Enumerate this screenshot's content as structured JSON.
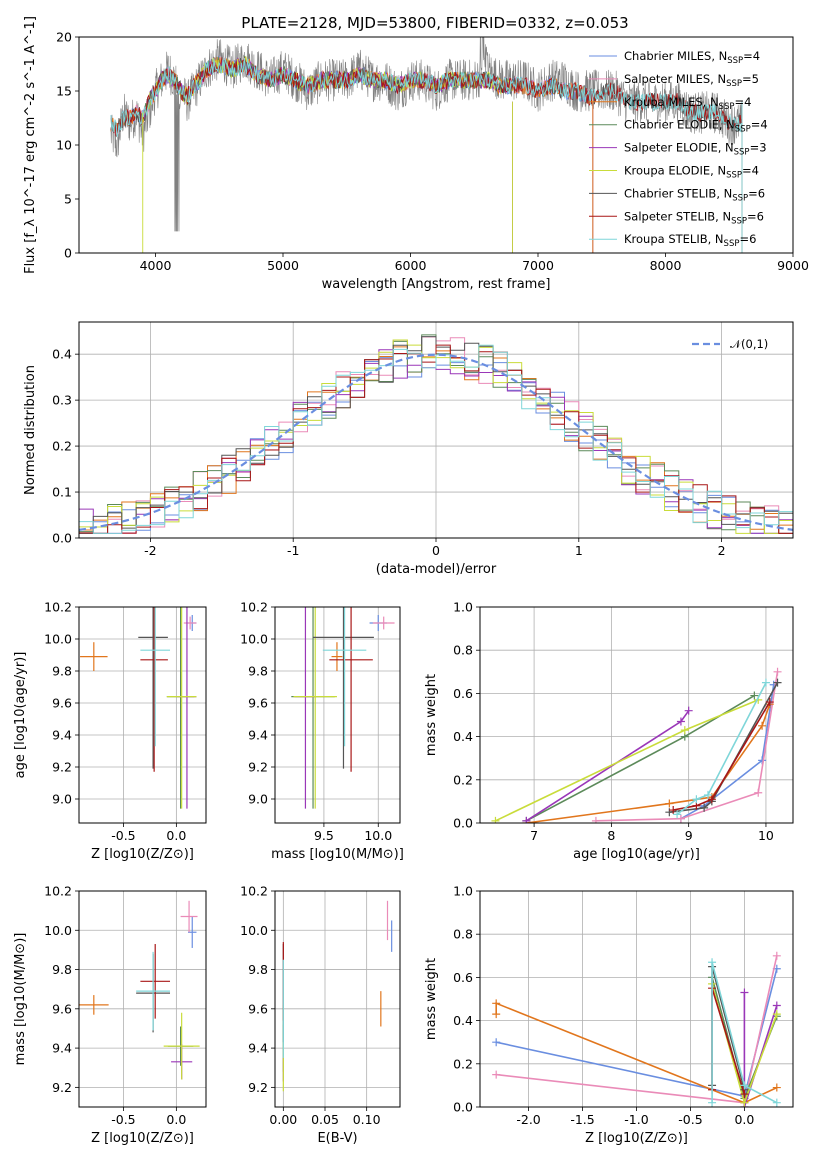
{
  "figure": {
    "title": "PLATE=2128, MJD=53800, FIBERID=0332, z=0.053"
  },
  "colors": {
    "Chabrier MILES": "#6a8ee0",
    "Salpeter MILES": "#ea8bb8",
    "Kroupa MILES": "#e1761d",
    "Chabrier ELODIE": "#5c8a5a",
    "Salpeter ELODIE": "#9a37b8",
    "Kroupa ELODIE": "#c9dc3a",
    "Chabrier STELIB": "#555555",
    "Salpeter STELIB": "#a81717",
    "Kroupa STELIB": "#7fd6d9"
  },
  "chart_data": [
    {
      "id": "spectrum",
      "type": "line",
      "title": "PLATE=2128, MJD=53800, FIBERID=0332, z=0.053",
      "xlabel": "wavelength [Angstrom, rest frame]",
      "ylabel": "Flux [f_λ 10^-17 erg cm^-2 s^-1 A^-1]",
      "xlim": [
        3400,
        9000
      ],
      "ylim": [
        0,
        20
      ],
      "xticks": [
        4000,
        5000,
        6000,
        7000,
        8000,
        9000
      ],
      "yticks": [
        0,
        5,
        10,
        15,
        20
      ],
      "legend": "top-right",
      "data_color": "#808080",
      "x": [
        3650,
        3700,
        3750,
        3800,
        3850,
        3900,
        3950,
        4000,
        4050,
        4100,
        4150,
        4200,
        4250,
        4300,
        4350,
        4400,
        4500,
        4600,
        4700,
        4800,
        4900,
        5000,
        5100,
        5200,
        5300,
        5400,
        5500,
        5600,
        5700,
        5800,
        5900,
        6000,
        6100,
        6200,
        6300,
        6400,
        6500,
        6600,
        6700,
        6800,
        6900,
        7000,
        7100,
        7200,
        7300,
        7400,
        7500,
        7600,
        7700,
        7800,
        7900,
        8000,
        8100,
        8200,
        8300,
        8400,
        8500,
        8600
      ],
      "data": [
        11,
        10,
        13,
        12,
        13,
        11,
        13,
        15,
        16,
        17,
        16,
        15,
        14,
        15,
        16,
        17,
        18,
        17,
        18,
        17,
        16,
        17,
        16,
        15,
        16,
        16,
        16,
        17,
        16,
        16,
        15,
        16,
        16,
        15,
        16,
        16,
        16,
        17,
        16,
        16,
        16,
        15,
        16,
        16,
        15,
        15,
        15,
        15,
        14,
        14,
        14,
        14,
        14,
        13,
        13,
        13,
        12,
        12
      ],
      "model": [
        12,
        11.5,
        12.5,
        12.5,
        13,
        12.5,
        14,
        15,
        16,
        16.5,
        16,
        15,
        14.5,
        15.5,
        16,
        17,
        17.5,
        17,
        17.5,
        16.5,
        16,
        16.5,
        16,
        15.5,
        16,
        16,
        16,
        16.5,
        16,
        16,
        15.5,
        16,
        16,
        15.5,
        16,
        16,
        16,
        16,
        15.5,
        15.5,
        15.5,
        15,
        15.5,
        15,
        15,
        14.5
      ],
      "series": [
        {
          "name": "Chabrier MILES",
          "nssp": "4",
          "range": [
            3650,
            7430
          ]
        },
        {
          "name": "Salpeter MILES",
          "nssp": "5",
          "range": [
            3650,
            7430
          ]
        },
        {
          "name": "Kroupa MILES",
          "nssp": "4",
          "range": [
            3650,
            7430
          ]
        },
        {
          "name": "Chabrier ELODIE",
          "nssp": "4",
          "range": [
            3900,
            6800
          ]
        },
        {
          "name": "Salpeter ELODIE",
          "nssp": "3",
          "range": [
            3900,
            6800
          ]
        },
        {
          "name": "Kroupa ELODIE",
          "nssp": "4",
          "range": [
            3900,
            6800
          ]
        },
        {
          "name": "Chabrier STELIB",
          "nssp": "6",
          "range": [
            3650,
            8600
          ]
        },
        {
          "name": "Salpeter STELIB",
          "nssp": "6",
          "range": [
            3650,
            8600
          ]
        },
        {
          "name": "Kroupa STELIB",
          "nssp": "6",
          "range": [
            3650,
            8600
          ]
        }
      ]
    },
    {
      "id": "residuals",
      "type": "line",
      "xlabel": "(data-model)/error",
      "ylabel": "Normed distribution",
      "xlim": [
        -2.5,
        2.5
      ],
      "ylim": [
        0,
        0.47
      ],
      "xticks": [
        -2,
        -1,
        0,
        1,
        2
      ],
      "yticks": [
        0.0,
        0.1,
        0.2,
        0.3,
        0.4
      ],
      "legend": "top-right",
      "reference_label": "𝒩(0,1)",
      "bin_width": 0.1,
      "bin_start": -2.5
    },
    {
      "id": "age-vs-Z",
      "type": "scatter",
      "xlabel": "Z [log10(Z/Z⊙)]",
      "ylabel": "age [log10(age/yr)]",
      "xlim": [
        -0.92,
        0.28
      ],
      "ylim": [
        8.85,
        10.2
      ],
      "xticks": [
        -0.5,
        0.0
      ],
      "yticks": [
        9.0,
        9.2,
        9.4,
        9.6,
        9.8,
        10.0,
        10.2
      ],
      "points": [
        {
          "series": "Chabrier MILES",
          "x": 0.15,
          "y": 10.1,
          "xerr": 0.04,
          "yerr": 0.05
        },
        {
          "series": "Salpeter MILES",
          "x": 0.13,
          "y": 10.1,
          "xerr": 0.06,
          "yerr": 0.04
        },
        {
          "series": "Kroupa MILES",
          "x": -0.78,
          "y": 9.89,
          "xerr": 0.13,
          "yerr": 0.09
        },
        {
          "series": "Chabrier ELODIE",
          "x": 0.04,
          "y": 9.64,
          "xerr": 0.13,
          "yerr": 0.7
        },
        {
          "series": "Salpeter ELODIE",
          "x": 0.1,
          "y": 9.64,
          "xerr": 0.09,
          "yerr": 0.7
        },
        {
          "series": "Kroupa ELODIE",
          "x": 0.05,
          "y": 9.64,
          "xerr": 0.14,
          "yerr": 0.7
        },
        {
          "series": "Chabrier STELIB",
          "x": -0.22,
          "y": 10.01,
          "xerr": 0.14,
          "yerr": 0.82
        },
        {
          "series": "Salpeter STELIB",
          "x": -0.21,
          "y": 9.87,
          "xerr": 0.13,
          "yerr": 0.7
        },
        {
          "series": "Kroupa STELIB",
          "x": -0.2,
          "y": 9.93,
          "xerr": 0.14,
          "yerr": 0.6
        }
      ]
    },
    {
      "id": "age-vs-mass",
      "type": "scatter",
      "xlabel": "mass [log10(M/M⊙)]",
      "ylabel": "",
      "xlim": [
        9.05,
        10.2
      ],
      "ylim": [
        8.85,
        10.2
      ],
      "xticks": [
        9.5,
        10.0
      ],
      "yticks": [
        9.0,
        9.2,
        9.4,
        9.6,
        9.8,
        10.0,
        10.2
      ],
      "points": [
        {
          "series": "Chabrier MILES",
          "x": 10.0,
          "y": 10.1,
          "xerr": 0.08,
          "yerr": 0.05
        },
        {
          "series": "Salpeter MILES",
          "x": 10.05,
          "y": 10.1,
          "xerr": 0.1,
          "yerr": 0.04
        },
        {
          "series": "Kroupa MILES",
          "x": 9.62,
          "y": 9.89,
          "xerr": 0.05,
          "yerr": 0.09
        },
        {
          "series": "Chabrier ELODIE",
          "x": 9.4,
          "y": 9.64,
          "xerr": 0.2,
          "yerr": 0.7
        },
        {
          "series": "Salpeter ELODIE",
          "x": 9.33,
          "y": 9.64,
          "xerr": 0.1,
          "yerr": 0.7
        },
        {
          "series": "Kroupa ELODIE",
          "x": 9.42,
          "y": 9.64,
          "xerr": 0.2,
          "yerr": 0.7
        },
        {
          "series": "Chabrier STELIB",
          "x": 9.68,
          "y": 10.01,
          "xerr": 0.28,
          "yerr": 0.82
        },
        {
          "series": "Salpeter STELIB",
          "x": 9.75,
          "y": 9.87,
          "xerr": 0.2,
          "yerr": 0.7
        },
        {
          "series": "Kroupa STELIB",
          "x": 9.69,
          "y": 9.93,
          "xerr": 0.2,
          "yerr": 0.6
        }
      ]
    },
    {
      "id": "weight-vs-age",
      "type": "line",
      "xlabel": "age [log10(age/yr)]",
      "ylabel": "mass weight",
      "xlim": [
        6.3,
        10.35
      ],
      "ylim": [
        0,
        1
      ],
      "xticks": [
        7,
        8,
        9,
        10
      ],
      "yticks": [
        0.0,
        0.2,
        0.4,
        0.6,
        0.8,
        1.0
      ],
      "series": [
        {
          "name": "Chabrier MILES",
          "x": [
            8.9,
            9.2,
            9.95,
            10.1
          ],
          "y": [
            0.02,
            0.08,
            0.29,
            0.64
          ]
        },
        {
          "name": "Salpeter MILES",
          "x": [
            7.8,
            8.9,
            9.9,
            10.15
          ],
          "y": [
            0.01,
            0.02,
            0.14,
            0.7
          ]
        },
        {
          "name": "Kroupa MILES",
          "x": [
            6.9,
            8.75,
            9.3,
            9.95,
            10.05
          ],
          "y": [
            0.0,
            0.09,
            0.12,
            0.45,
            0.55
          ]
        },
        {
          "name": "Chabrier ELODIE",
          "x": [
            6.9,
            8.95,
            9.85
          ],
          "y": [
            0.01,
            0.4,
            0.59
          ]
        },
        {
          "name": "Salpeter ELODIE",
          "x": [
            6.9,
            8.9,
            9.0
          ],
          "y": [
            0.01,
            0.47,
            0.52
          ]
        },
        {
          "name": "Kroupa ELODIE",
          "x": [
            6.5,
            8.95,
            9.9
          ],
          "y": [
            0.01,
            0.43,
            0.57
          ]
        },
        {
          "name": "Chabrier STELIB",
          "x": [
            8.75,
            9.2,
            9.3,
            10.15
          ],
          "y": [
            0.05,
            0.07,
            0.1,
            0.65
          ]
        },
        {
          "name": "Salpeter STELIB",
          "x": [
            8.8,
            9.1,
            9.3,
            10.05
          ],
          "y": [
            0.06,
            0.08,
            0.11,
            0.56
          ]
        },
        {
          "name": "Kroupa STELIB",
          "x": [
            8.85,
            9.1,
            9.25,
            10.0
          ],
          "y": [
            0.04,
            0.11,
            0.13,
            0.65
          ]
        }
      ]
    },
    {
      "id": "mass-vs-Z",
      "type": "scatter",
      "xlabel": "Z [log10(Z/Z⊙)]",
      "ylabel": "mass [log10(M/M⊙)]",
      "xlim": [
        -0.92,
        0.28
      ],
      "ylim": [
        9.1,
        10.2
      ],
      "xticks": [
        -0.5,
        0.0
      ],
      "yticks": [
        9.2,
        9.4,
        9.6,
        9.8,
        10.0,
        10.2
      ],
      "points": [
        {
          "series": "Chabrier MILES",
          "x": 0.15,
          "y": 9.99,
          "xerr": 0.04,
          "yerr": 0.08
        },
        {
          "series": "Salpeter MILES",
          "x": 0.12,
          "y": 10.07,
          "xerr": 0.08,
          "yerr": 0.08
        },
        {
          "series": "Kroupa MILES",
          "x": -0.78,
          "y": 9.62,
          "xerr": 0.14,
          "yerr": 0.05
        },
        {
          "series": "Chabrier ELODIE",
          "x": 0.04,
          "y": 9.41,
          "xerr": 0.12,
          "yerr": 0.1
        },
        {
          "series": "Salpeter ELODIE",
          "x": 0.05,
          "y": 9.33,
          "xerr": 0.1,
          "yerr": 0.09
        },
        {
          "series": "Kroupa ELODIE",
          "x": 0.05,
          "y": 9.41,
          "xerr": 0.17,
          "yerr": 0.17
        },
        {
          "series": "Chabrier STELIB",
          "x": -0.22,
          "y": 9.68,
          "xerr": 0.16,
          "yerr": 0.2
        },
        {
          "series": "Salpeter STELIB",
          "x": -0.2,
          "y": 9.74,
          "xerr": 0.14,
          "yerr": 0.19
        },
        {
          "series": "Kroupa STELIB",
          "x": -0.22,
          "y": 9.69,
          "xerr": 0.16,
          "yerr": 0.2
        }
      ]
    },
    {
      "id": "mass-vs-EBV",
      "type": "scatter",
      "xlabel": "E(B-V)",
      "ylabel": "",
      "xlim": [
        -0.01,
        0.14
      ],
      "ylim": [
        9.1,
        10.2
      ],
      "xticks": [
        0.0,
        0.05,
        0.1
      ],
      "yticks": [
        9.2,
        9.4,
        9.6,
        9.8,
        10.0,
        10.2
      ],
      "points": [
        {
          "series": "Chabrier MILES",
          "x": 0.13,
          "y": 9.97,
          "xerr": 0,
          "yerr": 0.08
        },
        {
          "series": "Salpeter MILES",
          "x": 0.125,
          "y": 10.05,
          "xerr": 0,
          "yerr": 0.1
        },
        {
          "series": "Kroupa MILES",
          "x": 0.117,
          "y": 9.6,
          "xerr": 0,
          "yerr": 0.09
        },
        {
          "series": "Chabrier ELODIE",
          "x": 0.0,
          "y": 9.4,
          "xerr": 0,
          "yerr": 0.12
        },
        {
          "series": "Salpeter ELODIE",
          "x": 0.0,
          "y": 9.33,
          "xerr": 0,
          "yerr": 0.1
        },
        {
          "series": "Kroupa ELODIE",
          "x": 0.0,
          "y": 9.4,
          "xerr": 0,
          "yerr": 0.22
        },
        {
          "series": "Chabrier STELIB",
          "x": 0.0,
          "y": 9.68,
          "xerr": 0,
          "yerr": 0.25
        },
        {
          "series": "Salpeter STELIB",
          "x": 0.0,
          "y": 9.74,
          "xerr": 0,
          "yerr": 0.2
        },
        {
          "series": "Kroupa STELIB",
          "x": 0.0,
          "y": 9.6,
          "xerr": 0,
          "yerr": 0.25
        }
      ]
    },
    {
      "id": "weight-vs-Z",
      "type": "line",
      "xlabel": "Z [log10(Z/Z⊙)]",
      "ylabel": "mass weight",
      "xlim": [
        -2.45,
        0.45
      ],
      "ylim": [
        0,
        1
      ],
      "xticks": [
        -2.0,
        -1.5,
        -1.0,
        -0.5,
        0.0
      ],
      "yticks": [
        0.0,
        0.2,
        0.4,
        0.6,
        0.8,
        1.0
      ],
      "series": [
        {
          "name": "Chabrier MILES",
          "x": [
            -2.3,
            0.0,
            0.3
          ],
          "y": [
            0.3,
            0.05,
            0.64
          ]
        },
        {
          "name": "Salpeter MILES",
          "x": [
            -2.3,
            0.0,
            0.3
          ],
          "y": [
            0.15,
            0.02,
            0.7
          ]
        },
        {
          "name": "Kroupa MILES",
          "x": [
            -2.3,
            -2.3,
            0.0,
            0.3
          ],
          "y": [
            0.43,
            0.48,
            0.02,
            0.09
          ]
        },
        {
          "name": "Chabrier ELODIE",
          "x": [
            -0.3,
            0.0,
            0.3
          ],
          "y": [
            0.6,
            0.04,
            0.42
          ]
        },
        {
          "name": "Salpeter ELODIE",
          "x": [
            0.0,
            0.0,
            0.3
          ],
          "y": [
            0.53,
            0.0,
            0.47
          ]
        },
        {
          "name": "Kroupa ELODIE",
          "x": [
            -0.3,
            0.0,
            0.3
          ],
          "y": [
            0.57,
            0.02,
            0.43
          ]
        },
        {
          "name": "Chabrier STELIB",
          "x": [
            -0.3,
            -0.3,
            0.0,
            0.0
          ],
          "y": [
            0.1,
            0.65,
            0.08,
            0.1
          ]
        },
        {
          "name": "Salpeter STELIB",
          "x": [
            -0.3,
            -0.3,
            0.0
          ],
          "y": [
            0.08,
            0.55,
            0.06
          ]
        },
        {
          "name": "Kroupa STELIB",
          "x": [
            -0.3,
            -0.3,
            0.0,
            0.3
          ],
          "y": [
            0.02,
            0.67,
            0.1,
            0.02
          ]
        }
      ]
    }
  ]
}
